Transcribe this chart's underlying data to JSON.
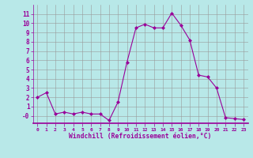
{
  "x": [
    0,
    1,
    2,
    3,
    4,
    5,
    6,
    7,
    8,
    9,
    10,
    11,
    12,
    13,
    14,
    15,
    16,
    17,
    18,
    19,
    20,
    21,
    22,
    23
  ],
  "y": [
    2,
    2.5,
    0.2,
    0.4,
    0.2,
    0.4,
    0.2,
    0.2,
    -0.5,
    1.5,
    5.8,
    9.5,
    9.9,
    9.5,
    9.5,
    11.1,
    9.8,
    8.2,
    4.4,
    4.2,
    3.0,
    -0.2,
    -0.3,
    -0.4
  ],
  "line_color": "#990099",
  "marker": "D",
  "marker_size": 2,
  "bg_color": "#b8e8e8",
  "grid_color": "#999999",
  "xlabel": "Windchill (Refroidissement éolien,°C)",
  "ytick_labels": [
    "-0",
    "1",
    "2",
    "3",
    "4",
    "5",
    "6",
    "7",
    "8",
    "9",
    "10",
    "11"
  ],
  "ytick_vals": [
    0,
    1,
    2,
    3,
    4,
    5,
    6,
    7,
    8,
    9,
    10,
    11
  ],
  "xtick_labels": [
    "0",
    "1",
    "2",
    "3",
    "4",
    "5",
    "6",
    "7",
    "8",
    "9",
    "10",
    "11",
    "12",
    "13",
    "14",
    "15",
    "16",
    "17",
    "18",
    "19",
    "20",
    "21",
    "22",
    "23"
  ],
  "ylim": [
    -0.8,
    12
  ],
  "xlim": [
    -0.5,
    23.5
  ],
  "tick_color": "#990099",
  "xlabel_color": "#990099"
}
